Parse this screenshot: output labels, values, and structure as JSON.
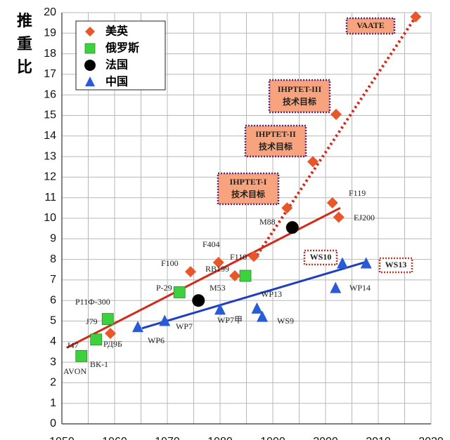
{
  "chart_data": {
    "type": "scatter",
    "y_label": [
      "推",
      "重",
      "比"
    ],
    "xlim": [
      1950,
      2020
    ],
    "xticks": [
      1950,
      1960,
      1970,
      1980,
      1990,
      2000,
      2010,
      2020
    ],
    "ylim": [
      0,
      20
    ],
    "yticks": [
      0,
      1,
      2,
      3,
      4,
      5,
      6,
      7,
      8,
      9,
      10,
      11,
      12,
      13,
      14,
      15,
      16,
      17,
      18,
      19,
      20
    ],
    "grid": true,
    "legend": "upper left",
    "series": [
      {
        "name": "美英",
        "marker": "diamond",
        "color": "#e8572a",
        "x": [
          1959.2,
          1974.4,
          1979.7,
          1982.8,
          1986.4,
          1992.7,
          1997.6,
          2002,
          2001.3,
          2002.5,
          2017.1
        ],
        "values": [
          4.4,
          7.4,
          7.85,
          7.2,
          8.15,
          10.5,
          12.75,
          15.05,
          10.75,
          10.05,
          19.8
        ]
      },
      {
        "name": "俄罗斯",
        "marker": "square",
        "color": "#3dd13d",
        "x": [
          1953.7,
          1956.5,
          1958.7,
          1972.3,
          1984.8
        ],
        "values": [
          3.3,
          4.1,
          5.1,
          6.4,
          7.2
        ]
      },
      {
        "name": "法国",
        "marker": "circle",
        "color": "#000000",
        "x": [
          1975.9,
          1993.7
        ],
        "values": [
          6.0,
          9.55
        ]
      },
      {
        "name": "中国",
        "marker": "triangle",
        "color": "#2a5bd6",
        "x": [
          1964.4,
          1969.5,
          1980,
          1987,
          1988,
          2003.2,
          2001.9,
          2007.7
        ],
        "values": [
          4.7,
          5.0,
          5.55,
          5.6,
          5.2,
          7.8,
          6.6,
          7.8
        ]
      }
    ],
    "trend_lines": [
      {
        "color": "#d22a1a",
        "style": "solid",
        "x": [
          1950.9,
          2002.8
        ],
        "values": [
          3.7,
          10.5
        ]
      },
      {
        "color": "#d22a1a",
        "style": "dotted",
        "x": [
          1986.5,
          2017.1
        ],
        "values": [
          8.0,
          19.8
        ]
      },
      {
        "color": "#1f3fbf",
        "style": "solid",
        "x": [
          1965.2,
          2008
        ],
        "values": [
          4.65,
          7.9
        ]
      }
    ],
    "point_labels": [
      "J47",
      "AVON",
      "ВК-1",
      "РД9Б",
      "J79",
      "Р11Ф-300",
      "P-29",
      "F100",
      "F404",
      "RB199",
      "F110",
      "M53",
      "M88",
      "F119",
      "EJ200",
      "WP6",
      "WP7",
      "WP7甲",
      "WP13",
      "WS9",
      "WP14"
    ],
    "boxed_labels": [
      [
        "VAATE"
      ],
      [
        "IHPTET-III",
        "技术目标"
      ],
      [
        "IHPTET-II",
        "技术目标"
      ],
      [
        "IHPTET-I",
        "技术目标"
      ],
      [
        "WS10"
      ],
      [
        "WS13"
      ]
    ]
  }
}
